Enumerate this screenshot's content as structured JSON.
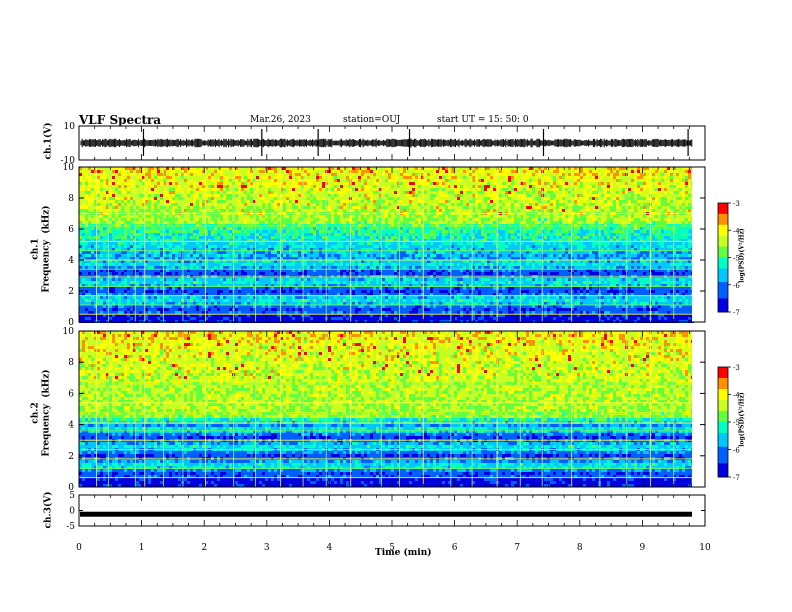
{
  "header": {
    "title": "VLF Spectra",
    "date": "Mar.26, 2023",
    "station": "station=OUJ",
    "start": "start  UT  =   15: 50: 0"
  },
  "chart_data": {
    "type": "heatmap",
    "xlabel": "Time  (min)",
    "xlim": [
      0,
      10
    ],
    "xticks": [
      "0",
      "1",
      "2",
      "3",
      "4",
      "5",
      "6",
      "7",
      "8",
      "9",
      "10"
    ],
    "colors": {
      "waveform": "#000000",
      "colormap": [
        "#000000",
        "#0000ff",
        "#00a0ff",
        "#00ffff",
        "#40ff40",
        "#c0ff00",
        "#ffff00",
        "#ff8000",
        "#ff0000",
        "#ffffff"
      ]
    },
    "panels": [
      {
        "id": "ch1-waveform",
        "type": "line",
        "ylabel": "ch.1(V)",
        "ylim": [
          -10,
          10
        ],
        "yticks": [
          "10",
          "-10"
        ],
        "baseline": 0,
        "spikes_min": [
          1.03,
          2.92,
          3.82,
          5.28,
          7.42,
          9.73
        ]
      },
      {
        "id": "ch1-spectrogram",
        "type": "heatmap",
        "ylabel": "ch.1\nFrequency  (kHz)",
        "ylim": [
          0,
          10
        ],
        "yticks": [
          "0",
          "2",
          "4",
          "6",
          "8",
          "10"
        ],
        "colorbar": {
          "label": "log(PSD)(V²/Hz)",
          "range": [
            -7,
            -3
          ],
          "ticks": [
            "-3",
            "-4",
            "-5",
            "-6",
            "-7"
          ]
        },
        "noise_floor_kHz": 6.5,
        "horizontal_lines_kHz": [
          0.5,
          1.1,
          1.7,
          2.3,
          2.9,
          3.4,
          4.0,
          4.6,
          5.2,
          6.2,
          7.0
        ],
        "sferic_times_min": [
          0.28,
          0.47,
          0.9,
          1.05,
          1.35,
          1.66,
          2.02,
          2.47,
          2.82,
          3.22,
          3.58,
          3.95,
          4.34,
          4.83,
          5.12,
          5.5,
          5.94,
          6.28,
          6.68,
          7.05,
          7.4,
          7.87,
          8.32,
          8.75,
          9.13,
          9.5
        ]
      },
      {
        "id": "ch2-spectrogram",
        "type": "heatmap",
        "ylabel": "ch.2\nFrequency  (kHz)",
        "ylim": [
          0,
          10
        ],
        "yticks": [
          "0",
          "2",
          "4",
          "6",
          "8",
          "10"
        ],
        "colorbar": {
          "label": "log(PSD)(V²/Hz)",
          "range": [
            -7,
            -3
          ],
          "ticks": [
            "-3",
            "-4",
            "-5",
            "-6",
            "-7"
          ]
        },
        "noise_floor_kHz": 4.6,
        "horizontal_lines_kHz": [
          0.6,
          1.2,
          1.8,
          2.4,
          3.0,
          3.6,
          4.1,
          4.7,
          5.4,
          6.6
        ],
        "sferic_times_min": [
          0.28,
          0.47,
          0.9,
          1.05,
          1.35,
          1.66,
          2.02,
          2.47,
          2.82,
          3.22,
          3.58,
          3.95,
          4.34,
          4.83,
          5.12,
          5.5,
          5.94,
          6.28,
          6.68,
          7.05,
          7.4,
          7.87,
          8.32,
          8.75,
          9.13,
          9.5
        ]
      },
      {
        "id": "ch3-waveform",
        "type": "line",
        "ylabel": "ch.3(V)",
        "ylim": [
          -5,
          5
        ],
        "yticks": [
          "5",
          "0",
          "-5"
        ],
        "baseline": -1.2
      }
    ]
  }
}
